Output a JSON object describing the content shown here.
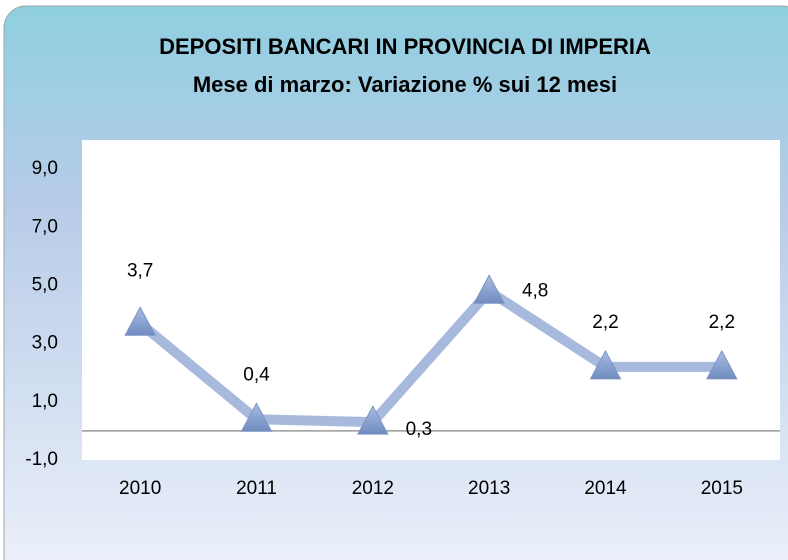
{
  "chart_data": {
    "type": "line",
    "title": "DEPOSITI BANCARI IN PROVINCIA DI IMPERIA",
    "subtitle": "Mese di marzo: Variazione % sui 12 mesi",
    "categories": [
      "2010",
      "2011",
      "2012",
      "2013",
      "2014",
      "2015"
    ],
    "values": [
      3.7,
      0.4,
      0.3,
      4.8,
      2.2,
      2.2
    ],
    "value_labels": [
      "3,7",
      "0,4",
      "0,3",
      "4,8",
      "2,2",
      "2,2"
    ],
    "color": "#9db2d9",
    "ylim": [
      -1,
      10
    ],
    "yticks": [
      {
        "value": -1,
        "label": "-1,0"
      },
      {
        "value": 1,
        "label": "1,0"
      },
      {
        "value": 3,
        "label": "3,0"
      },
      {
        "value": 5,
        "label": "5,0"
      },
      {
        "value": 7,
        "label": "7,0"
      },
      {
        "value": 9,
        "label": "9,0"
      }
    ],
    "grid": false
  }
}
